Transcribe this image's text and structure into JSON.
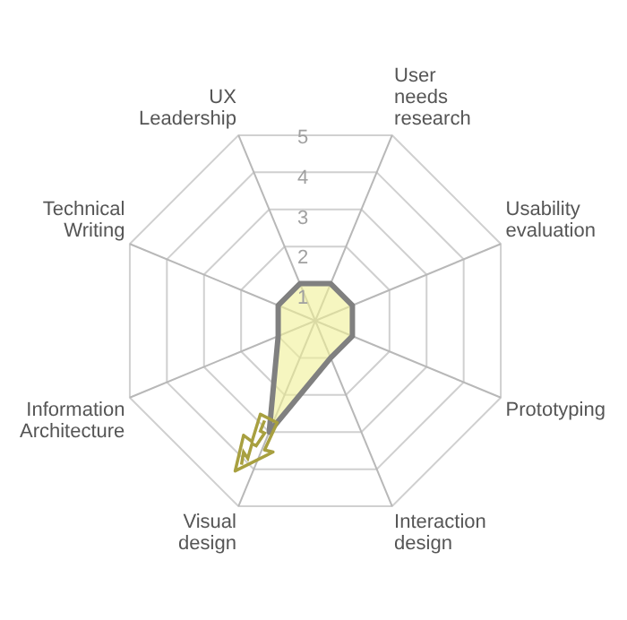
{
  "chart_data": {
    "type": "radar",
    "categories": [
      "User needs research",
      "Usability evaluation",
      "Prototyping",
      "Interaction design",
      "Visual design",
      "Information Architecture",
      "Technical Writing",
      "UX Leadership"
    ],
    "series": [
      {
        "color": "#808080",
        "values": [
          1,
          1,
          1,
          1,
          3,
          1,
          1,
          1
        ]
      }
    ],
    "ylim": [
      0,
      5
    ],
    "yticks": [
      1,
      2,
      3,
      4,
      5
    ],
    "grid": true,
    "legend": false,
    "marker": "none"
  }
}
